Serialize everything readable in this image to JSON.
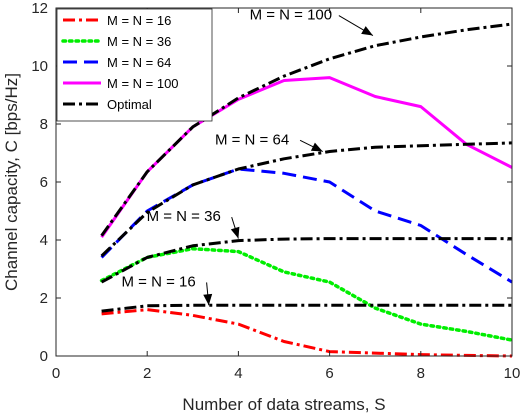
{
  "chart_data": {
    "type": "line",
    "xlabel": "Number of data streams, S",
    "ylabel": "Channel capacity, C [bps/Hz]",
    "xlim": [
      0,
      10
    ],
    "ylim": [
      0,
      12
    ],
    "xticks": [
      0,
      2,
      4,
      6,
      8,
      10
    ],
    "yticks": [
      0,
      2,
      4,
      6,
      8,
      10,
      12
    ],
    "grid": false,
    "legend_position": "top-left",
    "series": [
      {
        "name": "M = N = 16",
        "color": "#ff0000",
        "dash": "dash-dot",
        "x": [
          1,
          2,
          3,
          4,
          5,
          6,
          7,
          8,
          9,
          10
        ],
        "y": [
          1.45,
          1.6,
          1.4,
          1.1,
          0.5,
          0.15,
          0.1,
          0.05,
          0.02,
          0.0
        ]
      },
      {
        "name": "M = N = 36",
        "color": "#00ee00",
        "dash": "dotted",
        "x": [
          1,
          2,
          3,
          4,
          5,
          6,
          7,
          8,
          9,
          10
        ],
        "y": [
          2.6,
          3.4,
          3.7,
          3.6,
          2.9,
          2.55,
          1.65,
          1.1,
          0.85,
          0.55
        ]
      },
      {
        "name": "M = N = 64",
        "color": "#0000ff",
        "dash": "dashed",
        "x": [
          1,
          2,
          3,
          4,
          5,
          6,
          7,
          8,
          9,
          10
        ],
        "y": [
          3.4,
          5.0,
          5.9,
          6.45,
          6.3,
          6.0,
          5.0,
          4.5,
          3.5,
          2.55
        ]
      },
      {
        "name": "M = N = 100",
        "color": "#ff00ff",
        "dash": "solid",
        "x": [
          1,
          2,
          3,
          4,
          5,
          6,
          7,
          8,
          9,
          10
        ],
        "y": [
          4.1,
          6.35,
          7.9,
          8.85,
          9.5,
          9.6,
          8.95,
          8.6,
          7.3,
          6.5
        ]
      },
      {
        "name": "Optimal",
        "color": "#000000",
        "dash": "dash-dot",
        "x": [
          1,
          2,
          3,
          4,
          5,
          6,
          7,
          8,
          9,
          10
        ],
        "y": [
          1.55,
          1.73,
          1.75,
          1.75,
          1.75,
          1.75,
          1.75,
          1.75,
          1.75,
          1.75
        ]
      },
      {
        "name": "",
        "color": "#000000",
        "dash": "dash-dot",
        "x": [
          1,
          2,
          3,
          4,
          5,
          6,
          7,
          8,
          9,
          10
        ],
        "y": [
          2.55,
          3.4,
          3.8,
          3.98,
          4.03,
          4.05,
          4.05,
          4.05,
          4.05,
          4.05
        ]
      },
      {
        "name": "",
        "color": "#000000",
        "dash": "dash-dot",
        "x": [
          1,
          2,
          3,
          4,
          5,
          6,
          7,
          8,
          9,
          10
        ],
        "y": [
          3.45,
          4.95,
          5.9,
          6.45,
          6.8,
          7.05,
          7.2,
          7.25,
          7.3,
          7.35
        ]
      },
      {
        "name": "",
        "color": "#000000",
        "dash": "dash-dot",
        "x": [
          1,
          2,
          3,
          4,
          5,
          6,
          7,
          8,
          9,
          10
        ],
        "y": [
          4.15,
          6.35,
          7.9,
          8.9,
          9.65,
          10.25,
          10.7,
          11.0,
          11.25,
          11.45
        ]
      }
    ],
    "annotations": [
      {
        "text": "M = N = 100",
        "text_at": [
          5.15,
          11.6
        ],
        "arrow_to": [
          6.95,
          11.05
        ]
      },
      {
        "text": "M = N = 64",
        "text_at": [
          4.3,
          7.3
        ],
        "arrow_to": [
          5.85,
          7.05
        ]
      },
      {
        "text": "M = N = 36",
        "text_at": [
          2.8,
          4.65
        ],
        "arrow_to": [
          4.0,
          4.05
        ]
      },
      {
        "text": "M = N = 16",
        "text_at": [
          2.25,
          2.4
        ],
        "arrow_to": [
          3.35,
          1.75
        ]
      }
    ]
  }
}
